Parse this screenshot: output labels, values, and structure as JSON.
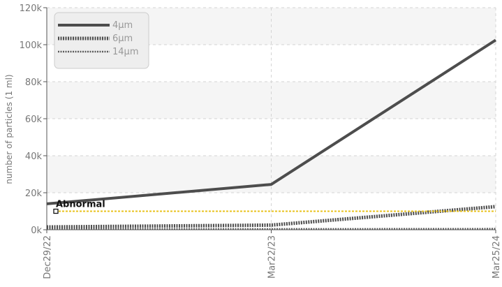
{
  "chart_data": {
    "type": "line",
    "x": [
      "Dec29/22",
      "Mar22/23",
      "Mar25/24"
    ],
    "ylabel": "number of particles (1 ml)",
    "ylim": [
      0,
      120000
    ],
    "yticks": [
      0,
      20000,
      40000,
      60000,
      80000,
      100000,
      120000
    ],
    "ytick_labels": [
      "0k",
      "20k",
      "40k",
      "60k",
      "80k",
      "100k",
      "120k"
    ],
    "grid": true,
    "legend_position": "top-left",
    "series": [
      {
        "name": "4μm",
        "values": [
          14000,
          24500,
          102500
        ],
        "color": "#4d4d4d",
        "style": "solid"
      },
      {
        "name": "6μm",
        "values": [
          1500,
          2500,
          12500
        ],
        "color": "#4d4d4d",
        "style": "dotted-thick"
      },
      {
        "name": "14μm",
        "values": [
          300,
          400,
          500
        ],
        "color": "#5a5a5a",
        "style": "dotted-thin"
      }
    ],
    "threshold": {
      "label": "Abnormal",
      "value": 10000,
      "color": "#e8c21c"
    }
  }
}
